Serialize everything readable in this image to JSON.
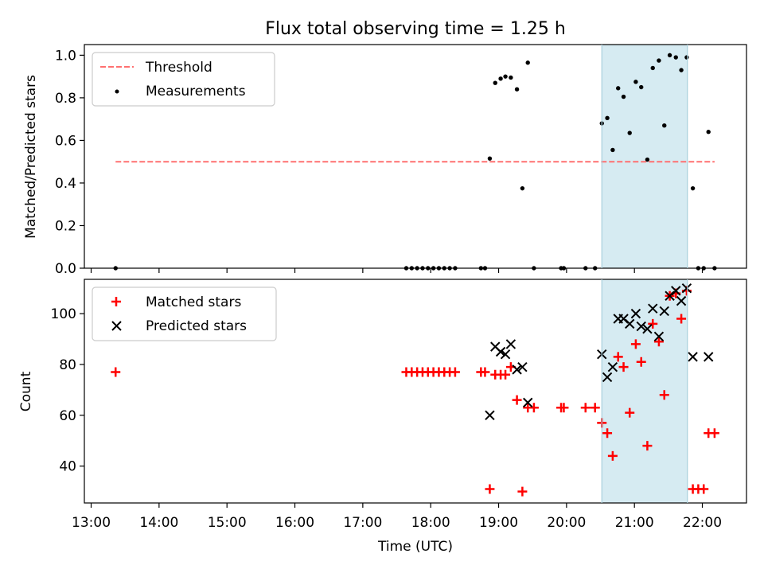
{
  "title": "Flux total observing time = 1.25 h",
  "colors": {
    "threshold": "#ff7070",
    "measurements": "#000000",
    "matched": "#ff0000",
    "predicted": "#000000",
    "highlight": "#add8e6"
  },
  "chart_data": [
    {
      "type": "scatter",
      "ylabel": "Matched/Predicted stars",
      "xlim": [
        12.9,
        22.65
      ],
      "ylim": [
        0,
        1.05
      ],
      "yticks": [
        "0.0",
        "0.2",
        "0.4",
        "0.6",
        "0.8",
        "1.0"
      ],
      "ytick_values": [
        0,
        0.2,
        0.4,
        0.6,
        0.8,
        1.0
      ],
      "legend": {
        "position": "top-left",
        "threshold_label": "Threshold",
        "measurements_label": "Measurements"
      },
      "highlight_span": [
        20.52,
        21.78
      ],
      "threshold": {
        "value": 0.5,
        "x": [
          13.36,
          22.18
        ]
      },
      "series": [
        {
          "name": "Measurements",
          "x": [
            13.36,
            17.64,
            17.72,
            17.8,
            17.88,
            17.96,
            18.04,
            18.12,
            18.2,
            18.28,
            18.36,
            18.74,
            18.8,
            18.87,
            18.95,
            19.03,
            19.1,
            19.18,
            19.27,
            19.35,
            19.43,
            19.52,
            19.92,
            19.96,
            20.28,
            20.42,
            20.52,
            20.6,
            20.68,
            20.76,
            20.84,
            20.93,
            21.02,
            21.1,
            21.19,
            21.27,
            21.36,
            21.44,
            21.52,
            21.61,
            21.69,
            21.77,
            21.86,
            21.94,
            22.02,
            22.09,
            22.18
          ],
          "y": [
            0,
            0,
            0,
            0,
            0,
            0,
            0,
            0,
            0,
            0,
            0,
            0,
            0,
            0.515,
            0.87,
            0.89,
            0.9,
            0.895,
            0.84,
            0.375,
            0.965,
            0,
            0,
            0,
            0,
            0,
            0.68,
            0.705,
            0.555,
            0.845,
            0.805,
            0.635,
            0.875,
            0.85,
            0.51,
            0.94,
            0.975,
            0.67,
            1.0,
            0.99,
            0.93,
            0.99,
            0.375,
            0,
            0,
            0.64,
            0
          ]
        }
      ]
    },
    {
      "type": "scatter",
      "xlabel": "Time (UTC)",
      "ylabel": "Count",
      "xlim": [
        12.9,
        22.65
      ],
      "ylim": [
        25.5,
        113.5
      ],
      "xticks": [
        "13:00",
        "14:00",
        "15:00",
        "16:00",
        "17:00",
        "18:00",
        "19:00",
        "20:00",
        "21:00",
        "22:00"
      ],
      "xtick_values": [
        13,
        14,
        15,
        16,
        17,
        18,
        19,
        20,
        21,
        22
      ],
      "yticks": [
        "40",
        "60",
        "80",
        "100"
      ],
      "ytick_values": [
        40,
        60,
        80,
        100
      ],
      "legend": {
        "position": "top-left",
        "matched_label": "Matched stars",
        "predicted_label": "Predicted stars"
      },
      "highlight_span": [
        20.52,
        21.78
      ],
      "series": [
        {
          "name": "Matched stars",
          "x": [
            13.36,
            17.64,
            17.72,
            17.8,
            17.88,
            17.96,
            18.04,
            18.12,
            18.2,
            18.28,
            18.36,
            18.74,
            18.8,
            18.87,
            18.95,
            19.03,
            19.1,
            19.18,
            19.27,
            19.35,
            19.43,
            19.52,
            19.92,
            19.96,
            20.28,
            20.42,
            20.52,
            20.6,
            20.68,
            20.76,
            20.84,
            20.93,
            21.02,
            21.1,
            21.19,
            21.27,
            21.36,
            21.44,
            21.52,
            21.61,
            21.69,
            21.77,
            21.86,
            21.94,
            22.02,
            22.09,
            22.18
          ],
          "y": [
            77,
            77,
            77,
            77,
            77,
            77,
            77,
            77,
            77,
            77,
            77,
            77,
            77,
            31,
            76,
            76,
            76,
            79,
            66,
            30,
            63,
            63,
            63,
            63,
            63,
            63,
            57,
            53,
            44,
            83,
            79,
            61,
            88,
            81,
            48,
            96,
            89,
            68,
            107,
            108,
            98,
            109,
            31,
            31,
            31,
            53,
            53
          ]
        },
        {
          "name": "Predicted stars",
          "x": [
            18.87,
            18.95,
            19.03,
            19.1,
            19.18,
            19.27,
            19.35,
            19.43,
            20.52,
            20.6,
            20.68,
            20.76,
            20.84,
            20.93,
            21.02,
            21.1,
            21.19,
            21.27,
            21.36,
            21.44,
            21.52,
            21.61,
            21.69,
            21.77,
            21.86,
            22.09
          ],
          "y": [
            60,
            87,
            85,
            84,
            88,
            78,
            79,
            65,
            84,
            75,
            79,
            98,
            98,
            96,
            100,
            95,
            94,
            102,
            91,
            101,
            107,
            109,
            105,
            110,
            83,
            83
          ]
        }
      ]
    }
  ]
}
